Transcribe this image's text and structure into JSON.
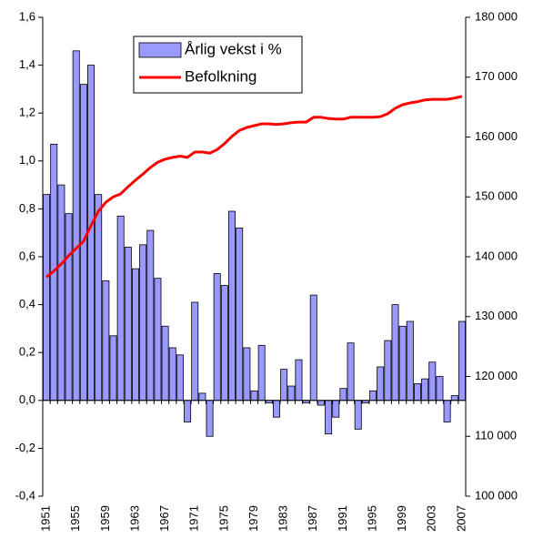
{
  "chart_data": {
    "type": "bar+line",
    "categories": [
      "1951",
      null,
      null,
      null,
      "1955",
      null,
      null,
      null,
      "1959",
      null,
      null,
      null,
      "1963",
      null,
      null,
      null,
      "1967",
      null,
      null,
      null,
      "1971",
      null,
      null,
      null,
      "1975",
      null,
      null,
      null,
      "1979",
      null,
      null,
      null,
      "1983",
      null,
      null,
      null,
      "1987",
      null,
      null,
      null,
      "1991",
      null,
      null,
      null,
      "1995",
      null,
      null,
      null,
      "1999",
      null,
      null,
      null,
      "2003",
      null,
      null,
      null,
      "2007"
    ],
    "series": [
      {
        "name": "Årlig vekst i %",
        "type": "bar",
        "color": "#9999ff",
        "axis": "y",
        "values": [
          0.86,
          1.07,
          0.9,
          0.78,
          1.46,
          1.32,
          1.4,
          0.86,
          0.5,
          0.27,
          0.77,
          0.64,
          0.55,
          0.65,
          0.71,
          0.51,
          0.31,
          0.22,
          0.19,
          -0.09,
          0.41,
          0.03,
          -0.15,
          0.53,
          0.48,
          0.79,
          0.72,
          0.22,
          0.04,
          0.23,
          -0.01,
          -0.07,
          0.13,
          0.06,
          0.17,
          -0.01,
          0.44,
          -0.02,
          -0.14,
          -0.07,
          0.05,
          0.24,
          -0.12,
          -0.01,
          0.04,
          0.14,
          0.25,
          0.4,
          0.31,
          0.33,
          0.07,
          0.09,
          0.16,
          0.1,
          -0.09,
          0.02,
          0.33
        ]
      },
      {
        "name": "Befolkning",
        "type": "line",
        "color": "#ff0000",
        "axis": "y2",
        "values": [
          136600,
          137600,
          138800,
          140200,
          141400,
          142600,
          145200,
          147600,
          149100,
          150000,
          150500,
          151700,
          152800,
          153800,
          154900,
          155800,
          156300,
          156600,
          156800,
          156600,
          157500,
          157500,
          157300,
          157900,
          158900,
          160100,
          161100,
          161600,
          161900,
          162200,
          162200,
          162100,
          162200,
          162400,
          162500,
          162500,
          163300,
          163300,
          163100,
          163000,
          163000,
          163300,
          163300,
          163300,
          163300,
          163400,
          163900,
          164800,
          165400,
          165700,
          165900,
          166200,
          166300,
          166300,
          166300,
          166500,
          166800
        ]
      }
    ],
    "ylim": [
      -0.4,
      1.6
    ],
    "yticks": [
      {
        "value": -0.4,
        "label": "-0,4"
      },
      {
        "value": -0.2,
        "label": "-0,2"
      },
      {
        "value": 0,
        "label": "0,0"
      },
      {
        "value": 0.2,
        "label": "0,2"
      },
      {
        "value": 0.4,
        "label": "0,4"
      },
      {
        "value": 0.6,
        "label": "0,6"
      },
      {
        "value": 0.8,
        "label": "0,8"
      },
      {
        "value": 1.0,
        "label": "1,0"
      },
      {
        "value": 1.2,
        "label": "1,2"
      },
      {
        "value": 1.4,
        "label": "1,4"
      },
      {
        "value": 1.6,
        "label": "1,6"
      }
    ],
    "y2lim": [
      100000,
      180000
    ],
    "y2ticks": [
      {
        "value": 100000,
        "label": "100 000"
      },
      {
        "value": 110000,
        "label": "110 000"
      },
      {
        "value": 120000,
        "label": "120 000"
      },
      {
        "value": 130000,
        "label": "130 000"
      },
      {
        "value": 140000,
        "label": "140 000"
      },
      {
        "value": 150000,
        "label": "150 000"
      },
      {
        "value": 160000,
        "label": "160 000"
      },
      {
        "value": 170000,
        "label": "170 000"
      },
      {
        "value": 180000,
        "label": "180 000"
      }
    ],
    "legend": "upper center"
  }
}
